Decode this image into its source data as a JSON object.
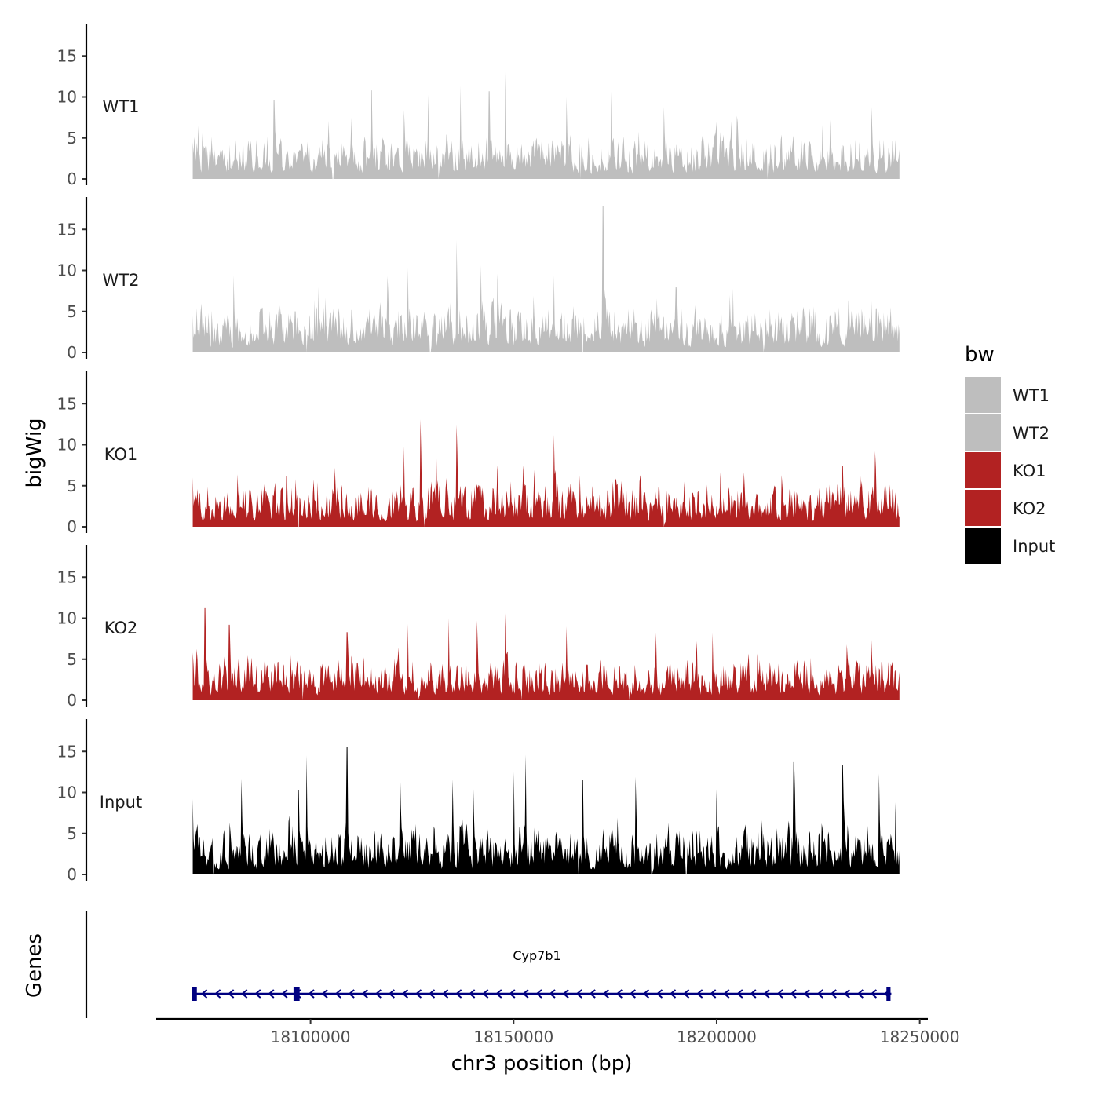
{
  "chart_data": {
    "type": "area",
    "y_axis_title": "bigWig",
    "x_axis_title": "chr3 position (bp)",
    "genes_axis_title": "Genes",
    "x_range": [
      18062000,
      18252000
    ],
    "data_range": [
      18071000,
      18245000
    ],
    "x_ticks": [
      18100000,
      18150000,
      18200000,
      18250000
    ],
    "x_tick_labels": [
      "18100000",
      "18150000",
      "18200000",
      "18250000"
    ],
    "y_range": [
      0,
      19
    ],
    "y_ticks": [
      0,
      5,
      10,
      15
    ],
    "y_tick_labels": [
      "0",
      "5",
      "10",
      "15"
    ],
    "tracks": [
      {
        "name": "WT1",
        "color": "#bebebe",
        "peaks": [
          [
            18071000,
            4.5
          ],
          [
            18091000,
            9.6
          ],
          [
            18110000,
            7.5
          ],
          [
            18115000,
            10.8
          ],
          [
            18123000,
            8.4
          ],
          [
            18129000,
            10.3
          ],
          [
            18137000,
            11.4
          ],
          [
            18144000,
            10.7
          ],
          [
            18148000,
            13.0
          ],
          [
            18163000,
            10.0
          ],
          [
            18174000,
            10.7
          ],
          [
            18187000,
            8.8
          ],
          [
            18205000,
            7.7
          ],
          [
            18228000,
            7.2
          ],
          [
            18238000,
            9.2
          ],
          [
            18244000,
            4.8
          ]
        ],
        "gaps": [
          18105500,
          18131500,
          18166500,
          18212500
        ]
      },
      {
        "name": "WT2",
        "color": "#bebebe",
        "peaks": [
          [
            18071000,
            4.5
          ],
          [
            18081000,
            9.4
          ],
          [
            18102000,
            8.0
          ],
          [
            18119000,
            9.3
          ],
          [
            18124000,
            10.3
          ],
          [
            18136000,
            13.7
          ],
          [
            18142000,
            10.6
          ],
          [
            18146000,
            9.6
          ],
          [
            18160000,
            9.4
          ],
          [
            18172000,
            17.8
          ],
          [
            18190000,
            8.0
          ],
          [
            18204000,
            7.8
          ],
          [
            18238000,
            6.8
          ],
          [
            18244000,
            2.5
          ]
        ],
        "gaps": [
          18099000,
          18129500,
          18167000,
          18211500
        ]
      },
      {
        "name": "KO1",
        "color": "#b22222",
        "peaks": [
          [
            18071000,
            6.0
          ],
          [
            18082000,
            6.4
          ],
          [
            18094000,
            6.2
          ],
          [
            18106000,
            7.2
          ],
          [
            18123000,
            9.8
          ],
          [
            18127000,
            13.1
          ],
          [
            18131000,
            10.2
          ],
          [
            18136000,
            12.4
          ],
          [
            18146000,
            7.5
          ],
          [
            18160000,
            11.2
          ],
          [
            18175000,
            5.6
          ],
          [
            18192000,
            5.5
          ],
          [
            18216000,
            6.3
          ],
          [
            18231000,
            7.4
          ],
          [
            18239000,
            9.2
          ],
          [
            18244000,
            4.2
          ]
        ],
        "gaps": [
          18097000,
          18128000,
          18187000
        ]
      },
      {
        "name": "KO2",
        "color": "#b22222",
        "peaks": [
          [
            18071000,
            5.8
          ],
          [
            18074000,
            11.3
          ],
          [
            18080000,
            9.2
          ],
          [
            18095000,
            6.1
          ],
          [
            18109000,
            8.3
          ],
          [
            18124000,
            9.3
          ],
          [
            18134000,
            10.0
          ],
          [
            18141000,
            9.7
          ],
          [
            18148000,
            10.6
          ],
          [
            18163000,
            9.0
          ],
          [
            18185000,
            8.2
          ],
          [
            18199000,
            8.2
          ],
          [
            18232000,
            6.8
          ],
          [
            18238000,
            7.9
          ],
          [
            18244000,
            3.7
          ]
        ],
        "gaps": [
          18098000,
          18126500,
          18152000,
          18178500
        ]
      },
      {
        "name": "Input",
        "color": "#000000",
        "peaks": [
          [
            18071000,
            9.2
          ],
          [
            18083000,
            11.7
          ],
          [
            18097000,
            10.3
          ],
          [
            18099000,
            14.5
          ],
          [
            18109000,
            15.5
          ],
          [
            18122000,
            13.0
          ],
          [
            18135000,
            11.6
          ],
          [
            18140000,
            11.9
          ],
          [
            18150000,
            12.5
          ],
          [
            18153000,
            14.6
          ],
          [
            18167000,
            11.5
          ],
          [
            18180000,
            11.9
          ],
          [
            18200000,
            10.4
          ],
          [
            18219000,
            13.7
          ],
          [
            18231000,
            13.3
          ],
          [
            18240000,
            12.3
          ],
          [
            18244000,
            8.8
          ]
        ],
        "gaps": [
          18076000,
          18166000,
          18184000,
          18192500
        ]
      }
    ],
    "legend": {
      "title": "bw",
      "position": "right",
      "entries": [
        {
          "label": "WT1",
          "color": "#bebebe"
        },
        {
          "label": "WT2",
          "color": "#bebebe"
        },
        {
          "label": "KO1",
          "color": "#b22222"
        },
        {
          "label": "KO2",
          "color": "#b22222"
        },
        {
          "label": "Input",
          "color": "#000000"
        }
      ]
    },
    "gene": {
      "name": "Cyp7b1",
      "start": 18071000,
      "end": 18243000,
      "strand": "-",
      "color": "#000080",
      "exons": [
        [
          18071000,
          18072200
        ],
        [
          18096000,
          18097500
        ],
        [
          18242000,
          18243000
        ]
      ]
    }
  }
}
